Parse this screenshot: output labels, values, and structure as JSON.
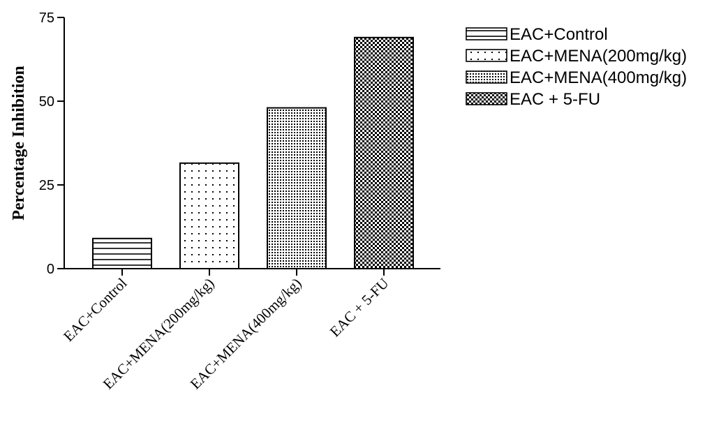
{
  "chart_data": {
    "type": "bar",
    "categories": [
      "EAC+Control",
      "EAC+MENA(200mg/kg)",
      "EAC+MENA(400mg/kg)",
      "EAC + 5-FU"
    ],
    "values": [
      9,
      31.5,
      48,
      69
    ],
    "patterns": [
      "horizontal-lines",
      "sparse-dots",
      "dense-dots",
      "checkerboard"
    ],
    "ylabel": "Percentage Inhibition",
    "xlabel": "",
    "ylim": [
      0,
      75
    ],
    "yticks": [
      0,
      25,
      50,
      75
    ],
    "legend": {
      "placement": "top-right",
      "entries": [
        "EAC+Control",
        "EAC+MENA(200mg/kg)",
        "EAC+MENA(400mg/kg)",
        "EAC + 5-FU"
      ]
    },
    "grid": false
  }
}
